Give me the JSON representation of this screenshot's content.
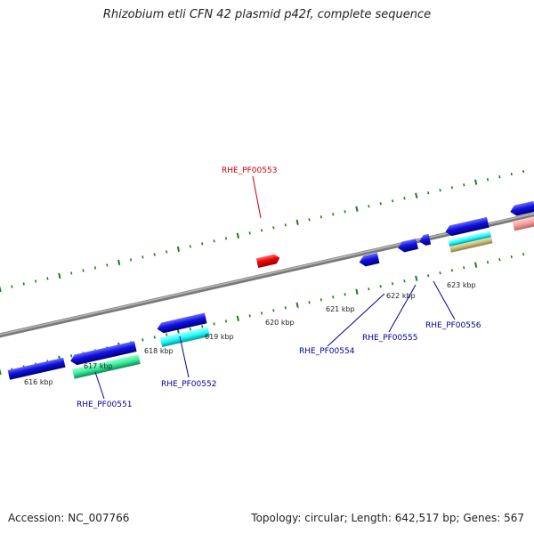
{
  "title": "Rhizobium etli CFN 42 plasmid p42f, complete sequence",
  "footer": {
    "accession": "Accession: NC_007766",
    "topology": "Topology: circular; Length: 642,517 bp; Genes: 567"
  },
  "scale_ticks": [
    {
      "label": "616 kbp"
    },
    {
      "label": "617 kbp"
    },
    {
      "label": "618 kbp"
    },
    {
      "label": "619 kbp"
    },
    {
      "label": "620 kbp"
    },
    {
      "label": "621 kbp"
    },
    {
      "label": "622 kbp"
    },
    {
      "label": "623 kbp"
    }
  ],
  "gene_labels": [
    {
      "id": "RHE_PF00551",
      "color": "#000099"
    },
    {
      "id": "RHE_PF00552",
      "color": "#000099"
    },
    {
      "id": "RHE_PF00553",
      "color": "#cc0000"
    },
    {
      "id": "RHE_PF00554",
      "color": "#000099"
    },
    {
      "id": "RHE_PF00555",
      "color": "#000099"
    },
    {
      "id": "RHE_PF00556",
      "color": "#000099"
    }
  ],
  "colors": {
    "backbone": "#8a8a8a",
    "tick": "#1f7a1f",
    "gene_blue": "#1010e0",
    "gene_red": "#ee0000",
    "cyan": "#22ffff",
    "teal": "#33ee99",
    "khaki": "#c8b878",
    "pink": "#f4a0a0"
  }
}
